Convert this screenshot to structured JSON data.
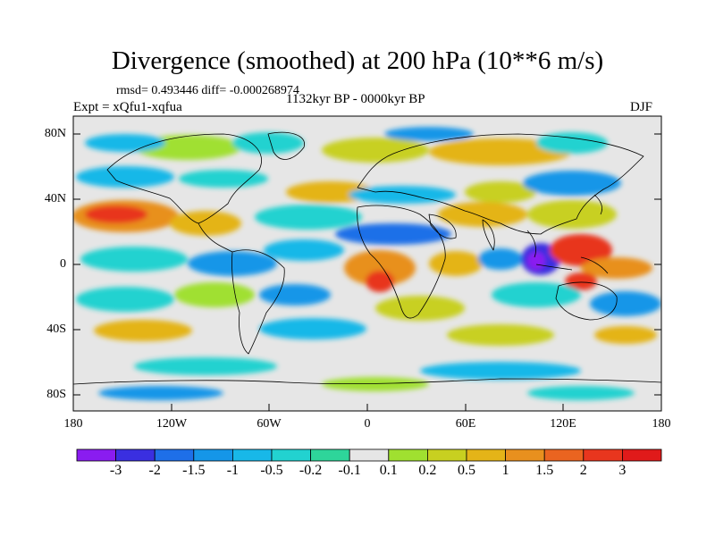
{
  "title": "Divergence (smoothed) at 200 hPa (10**6 m/s)",
  "stats": "rmsd= 0.493446 diff= -0.000268974",
  "experiment": "Expt = xQfu1-xqfua",
  "period": "1132kyr BP - 0000kyr BP",
  "season": "DJF",
  "y_ticks": [
    "80N",
    "40N",
    "0",
    "40S",
    "80S"
  ],
  "x_ticks": [
    "180",
    "120W",
    "60W",
    "0",
    "60E",
    "120E",
    "180"
  ],
  "colorbar": {
    "labels": [
      "-3",
      "-2",
      "-1.5",
      "-1",
      "-0.5",
      "-0.2",
      "-0.1",
      "0.1",
      "0.2",
      "0.5",
      "1",
      "1.5",
      "2",
      "3"
    ],
    "colors": [
      "#8a1cf0",
      "#3a2fe0",
      "#1e6fe8",
      "#1596e8",
      "#18b8e8",
      "#22d2d0",
      "#2ed59a",
      "#e6e6e6",
      "#a0e030",
      "#c8d020",
      "#e4b418",
      "#e8901e",
      "#ea6420",
      "#e8361e",
      "#e01a1a"
    ]
  },
  "colors": {
    "neutral": "#e6e6e6",
    "frame": "#000000"
  }
}
